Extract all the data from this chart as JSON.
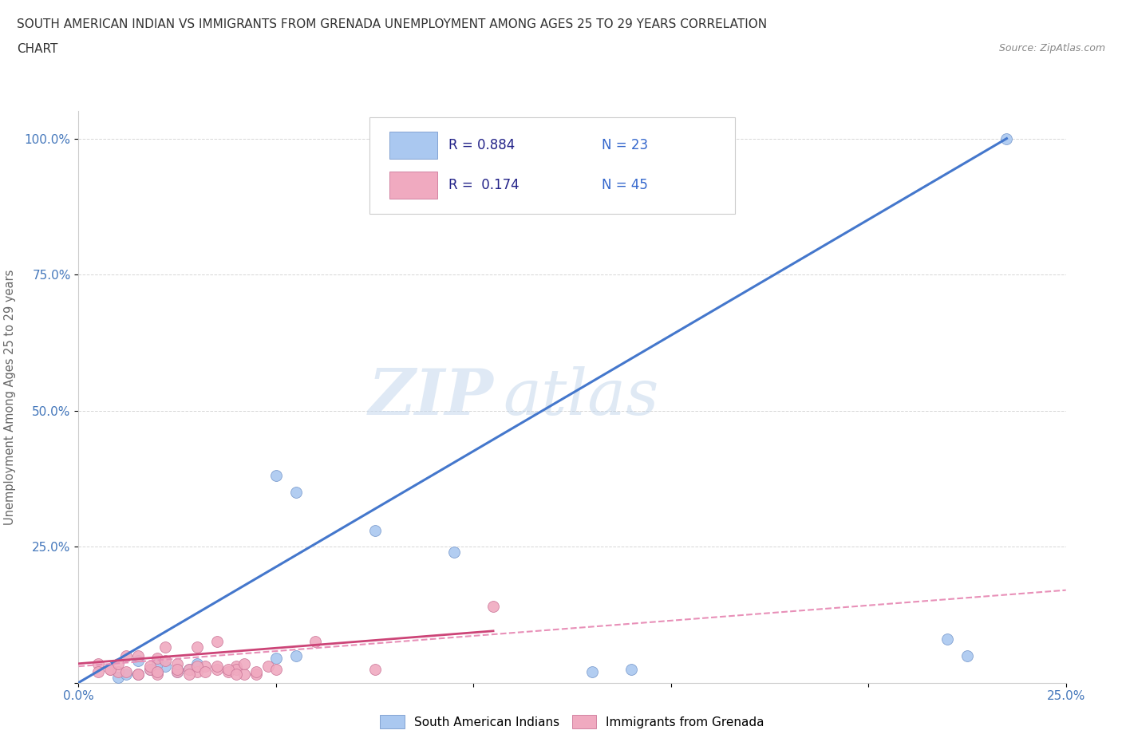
{
  "title_line1": "SOUTH AMERICAN INDIAN VS IMMIGRANTS FROM GRENADA UNEMPLOYMENT AMONG AGES 25 TO 29 YEARS CORRELATION",
  "title_line2": "CHART",
  "source_text": "Source: ZipAtlas.com",
  "ylabel": "Unemployment Among Ages 25 to 29 years",
  "xmin": 0.0,
  "xmax": 25.0,
  "ymin": 0.0,
  "ymax": 105.0,
  "xticks": [
    0.0,
    5.0,
    10.0,
    15.0,
    20.0,
    25.0
  ],
  "yticks": [
    0.0,
    25.0,
    50.0,
    75.0,
    100.0
  ],
  "xtick_labels": [
    "0.0%",
    "",
    "",
    "",
    "",
    "25.0%"
  ],
  "ytick_labels": [
    "",
    "25.0%",
    "50.0%",
    "75.0%",
    "100.0%"
  ],
  "blue_scatter_x": [
    1.5,
    1.8,
    2.0,
    2.2,
    2.5,
    2.8,
    3.0,
    1.0,
    1.2,
    1.5,
    2.0,
    2.5,
    5.0,
    5.5,
    7.5,
    9.5,
    13.0,
    14.0,
    5.0,
    5.5,
    22.0,
    22.5,
    23.5
  ],
  "blue_scatter_y": [
    1.5,
    2.5,
    2.0,
    3.0,
    2.0,
    2.5,
    3.5,
    1.0,
    1.5,
    4.0,
    3.5,
    2.5,
    38.0,
    35.0,
    28.0,
    24.0,
    2.0,
    2.5,
    4.5,
    5.0,
    8.0,
    5.0,
    100.0
  ],
  "pink_scatter_x": [
    0.5,
    0.8,
    1.0,
    1.2,
    1.5,
    1.5,
    1.8,
    2.0,
    2.0,
    2.2,
    2.5,
    2.5,
    2.8,
    3.0,
    3.0,
    3.2,
    3.5,
    3.5,
    3.8,
    4.0,
    4.0,
    4.2,
    4.5,
    0.5,
    0.8,
    1.0,
    1.2,
    1.5,
    1.8,
    2.0,
    2.2,
    2.5,
    2.8,
    3.0,
    3.2,
    3.5,
    3.8,
    4.0,
    4.2,
    4.5,
    4.8,
    5.0,
    6.0,
    7.5,
    10.5
  ],
  "pink_scatter_y": [
    3.5,
    2.5,
    2.0,
    5.0,
    1.5,
    5.0,
    2.5,
    1.5,
    4.5,
    6.5,
    2.0,
    3.5,
    2.5,
    6.5,
    2.0,
    3.0,
    2.5,
    7.5,
    2.0,
    3.0,
    2.5,
    1.5,
    1.5,
    2.0,
    2.5,
    3.5,
    2.0,
    1.5,
    3.0,
    2.0,
    4.0,
    2.5,
    1.5,
    3.0,
    2.0,
    3.0,
    2.5,
    1.5,
    3.5,
    2.0,
    3.0,
    2.5,
    7.5,
    2.5,
    14.0
  ],
  "blue_line_x": [
    0.0,
    23.5
  ],
  "blue_line_y": [
    0.0,
    100.0
  ],
  "pink_line_x": [
    0.0,
    25.0
  ],
  "pink_line_y": [
    3.0,
    17.0
  ],
  "pink_solid_line_x": [
    0.0,
    10.5
  ],
  "pink_solid_line_y": [
    3.5,
    9.5
  ],
  "blue_color": "#aac8f0",
  "pink_color": "#f0aac0",
  "blue_line_color": "#4477cc",
  "pink_line_color": "#cc4477",
  "pink_dashed_color": "#e890b8",
  "R_blue": "0.884",
  "N_blue": "23",
  "R_pink": "0.174",
  "N_pink": "45",
  "legend_label_blue": "South American Indians",
  "legend_label_pink": "Immigrants from Grenada",
  "watermark_zip": "ZIP",
  "watermark_atlas": "atlas",
  "scatter_size": 100,
  "background_color": "#ffffff"
}
